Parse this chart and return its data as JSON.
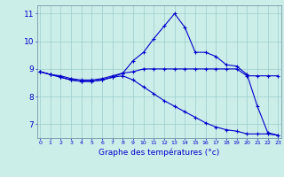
{
  "xlabel": "Graphe des températures (°c)",
  "hours": [
    0,
    1,
    2,
    3,
    4,
    5,
    6,
    7,
    8,
    9,
    10,
    11,
    12,
    13,
    14,
    15,
    16,
    17,
    18,
    19,
    20,
    21,
    22,
    23
  ],
  "line1": [
    8.9,
    8.8,
    8.7,
    8.6,
    8.55,
    8.55,
    8.6,
    8.7,
    8.85,
    9.3,
    9.6,
    10.1,
    10.55,
    11.0,
    10.5,
    9.6,
    9.6,
    9.45,
    9.15,
    9.1,
    8.8,
    7.65,
    6.7,
    6.6
  ],
  "line2": [
    8.9,
    8.8,
    8.75,
    8.65,
    8.6,
    8.6,
    8.65,
    8.75,
    8.85,
    8.9,
    9.0,
    9.0,
    9.0,
    9.0,
    9.0,
    9.0,
    9.0,
    9.0,
    9.0,
    9.0,
    8.75,
    8.75,
    8.75,
    8.75
  ],
  "line3": [
    8.9,
    8.8,
    8.7,
    8.6,
    8.55,
    8.55,
    8.6,
    8.7,
    8.75,
    8.6,
    8.35,
    8.1,
    7.85,
    7.65,
    7.45,
    7.25,
    7.05,
    6.9,
    6.8,
    6.75,
    6.65,
    6.65,
    6.65,
    6.6
  ],
  "bg_color": "#cceee8",
  "line_color": "#0000cc",
  "grid_color": "#99cccc",
  "ylim": [
    6.5,
    11.3
  ],
  "yticks": [
    7,
    8,
    9,
    10,
    11
  ],
  "xticks": [
    0,
    1,
    2,
    3,
    4,
    5,
    6,
    7,
    8,
    9,
    10,
    11,
    12,
    13,
    14,
    15,
    16,
    17,
    18,
    19,
    20,
    21,
    22,
    23
  ]
}
